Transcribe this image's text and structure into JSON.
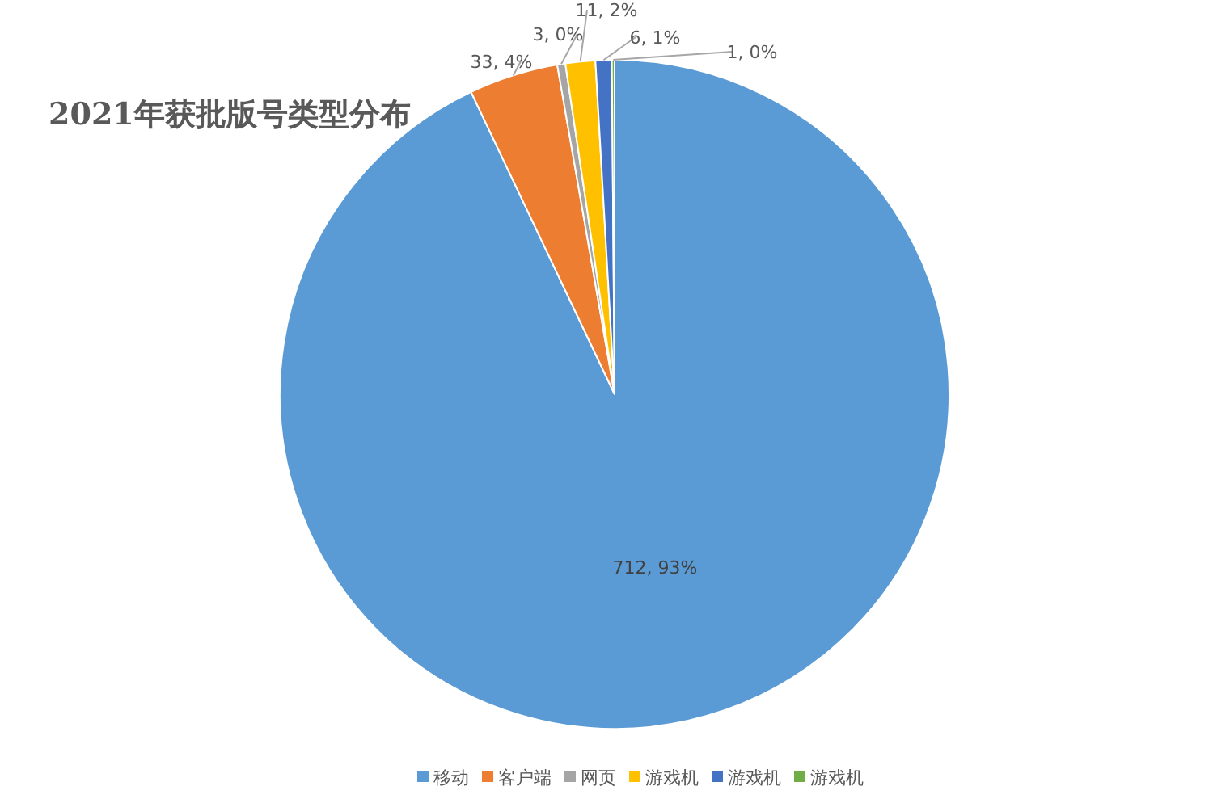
{
  "chart_data": {
    "type": "pie",
    "title": "2021年获批版号类型分布",
    "categories": [
      "移动",
      "客户端",
      "网页",
      "游戏机",
      "游戏机",
      "游戏机"
    ],
    "values": [
      712,
      33,
      3,
      11,
      6,
      1
    ],
    "colors": [
      "#5b9bd5",
      "#ed7d31",
      "#a5a5a5",
      "#ffc000",
      "#4472c4",
      "#70ad47"
    ],
    "value_labels": [
      "712, 93%",
      "33, 4%",
      "3, 0%",
      "11, 2%",
      "6, 1%",
      "1, 0%"
    ],
    "legend": "bottom"
  }
}
